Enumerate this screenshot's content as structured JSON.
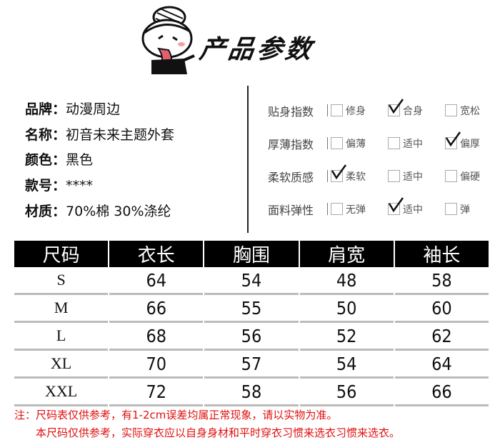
{
  "header": {
    "title": "产品参数"
  },
  "info": [
    {
      "key": "品牌：",
      "value": "动漫周边"
    },
    {
      "key": "名称：",
      "value": "初音未来主题外套"
    },
    {
      "key": "颜色：",
      "value": "黑色"
    },
    {
      "key": "款号：",
      "value": "****"
    },
    {
      "key": "材质：",
      "value": "70%棉  30%涤纶"
    }
  ],
  "params": [
    {
      "label": "贴身指数",
      "options": [
        "修身",
        "合身",
        "宽松"
      ],
      "selected": 1
    },
    {
      "label": "厚薄指数",
      "options": [
        "偏薄",
        "适中",
        "偏厚"
      ],
      "selected": 2
    },
    {
      "label": "柔软质感",
      "options": [
        "柔软",
        "适中",
        "偏硬"
      ],
      "selected": 0
    },
    {
      "label": "面料弹性",
      "options": [
        "无弹",
        "适中",
        "弹"
      ],
      "selected": 1
    }
  ],
  "size_table": {
    "headers": [
      "尺码",
      "衣长",
      "胸围",
      "肩宽",
      "袖长"
    ],
    "rows": [
      [
        "S",
        "64",
        "54",
        "48",
        "58"
      ],
      [
        "M",
        "66",
        "55",
        "50",
        "60"
      ],
      [
        "L",
        "68",
        "56",
        "52",
        "62"
      ],
      [
        "XL",
        "70",
        "57",
        "54",
        "64"
      ],
      [
        "XXL",
        "72",
        "58",
        "56",
        "66"
      ]
    ]
  },
  "notes": [
    "注：尺码表仅供参考，有1-2cm误差均属正常现象，请以实物为准。",
    "本尺码仅供参考，实际穿衣应以自身身材和平时穿衣习惯来选衣习惯来选衣。"
  ],
  "colors": {
    "note": "#e01010",
    "header_bg": "#000000"
  }
}
